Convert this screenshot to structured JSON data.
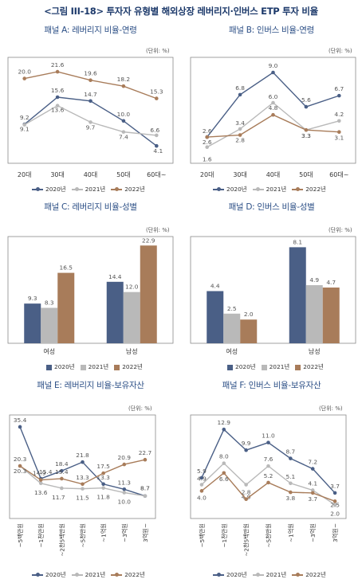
{
  "figure_title": "<그림 III-18> 투자자 유형별 해외상장 레버리지·인버스 ETP 투자 비율",
  "unit_label": "(단위: %)",
  "colors": {
    "2020년": "#4a5f86",
    "2021년": "#b9b9b9",
    "2022년": "#a87c5a"
  },
  "chart_data": [
    {
      "id": "A",
      "type": "line",
      "title": "패널 A: 레버리지 비율-연령",
      "categories": [
        "20대",
        "30대",
        "40대",
        "50대",
        "60대~"
      ],
      "series": [
        {
          "name": "2020년",
          "values": [
            9.2,
            15.6,
            14.7,
            10.0,
            4.1
          ]
        },
        {
          "name": "2021년",
          "values": [
            9.1,
            13.6,
            9.7,
            7.4,
            6.6
          ]
        },
        {
          "name": "2022년",
          "values": [
            20.0,
            21.6,
            19.6,
            18.2,
            15.3
          ]
        }
      ],
      "ylim": [
        0,
        25
      ],
      "legend_position": "bottom"
    },
    {
      "id": "B",
      "type": "line",
      "title": "패널 B: 인버스 비율-연령",
      "categories": [
        "20대",
        "30대",
        "40대",
        "50대",
        "60대~"
      ],
      "series": [
        {
          "name": "2020년",
          "values": [
            2.6,
            6.8,
            9.0,
            5.6,
            6.7
          ]
        },
        {
          "name": "2021년",
          "values": [
            1.6,
            3.4,
            6.0,
            3.3,
            4.2
          ]
        },
        {
          "name": "2022년",
          "values": [
            2.6,
            2.8,
            4.8,
            3.3,
            3.1
          ]
        }
      ],
      "ylim": [
        0,
        10.5
      ],
      "legend_position": "bottom"
    },
    {
      "id": "C",
      "type": "bar",
      "title": "패널 C: 레버리지 비율-성별",
      "categories": [
        "여성",
        "남성"
      ],
      "series": [
        {
          "name": "2020년",
          "values": [
            9.3,
            14.4
          ]
        },
        {
          "name": "2021년",
          "values": [
            8.3,
            12.0
          ]
        },
        {
          "name": "2022년",
          "values": [
            16.5,
            22.9
          ]
        }
      ],
      "ylim": [
        0,
        25
      ],
      "legend_position": "bottom"
    },
    {
      "id": "D",
      "type": "bar",
      "title": "패널 D: 인버스 비율-성별",
      "categories": [
        "여성",
        "남성"
      ],
      "series": [
        {
          "name": "2020년",
          "values": [
            4.4,
            8.1
          ]
        },
        {
          "name": "2021년",
          "values": [
            2.5,
            4.9
          ]
        },
        {
          "name": "2022년",
          "values": [
            2.0,
            4.7
          ]
        }
      ],
      "ylim": [
        0,
        9
      ],
      "legend_position": "bottom"
    },
    {
      "id": "E",
      "type": "line",
      "title": "패널 E: 레버리지 비율-보유자산",
      "categories": [
        "~5백만원",
        "~1천만원",
        "~2천5백만원",
        "~5천만원",
        "~1억원",
        "~3억원",
        "3억원~"
      ],
      "series": [
        {
          "name": "2020년",
          "values": [
            35.4,
            15.4,
            18.4,
            21.8,
            13.3,
            11.3,
            8.7
          ]
        },
        {
          "name": "2021년",
          "values": [
            20.3,
            13.6,
            11.7,
            11.5,
            11.8,
            10.0,
            8.7
          ]
        },
        {
          "name": "2022년",
          "values": [
            20.3,
            14.9,
            15.4,
            13.3,
            17.5,
            20.9,
            22.7
          ]
        }
      ],
      "ylim": [
        0,
        40
      ],
      "legend_position": "bottom"
    },
    {
      "id": "F",
      "type": "line",
      "title": "패널 F: 인버스 비율-보유자산",
      "categories": [
        "~5백만원",
        "~1천만원",
        "~2천5백만원",
        "~5천만원",
        "~1억원",
        "~3억원",
        "3억원~"
      ],
      "series": [
        {
          "name": "2020년",
          "values": [
            5.9,
            12.9,
            9.9,
            11.0,
            8.7,
            7.2,
            3.7
          ]
        },
        {
          "name": "2021년",
          "values": [
            4.9,
            8.0,
            4.9,
            7.6,
            5.1,
            4.1,
            2.0
          ]
        },
        {
          "name": "2022년",
          "values": [
            4.0,
            6.6,
            2.8,
            5.2,
            3.8,
            3.7,
            2.5
          ]
        }
      ],
      "ylim": [
        0,
        15
      ],
      "legend_position": "bottom"
    }
  ]
}
